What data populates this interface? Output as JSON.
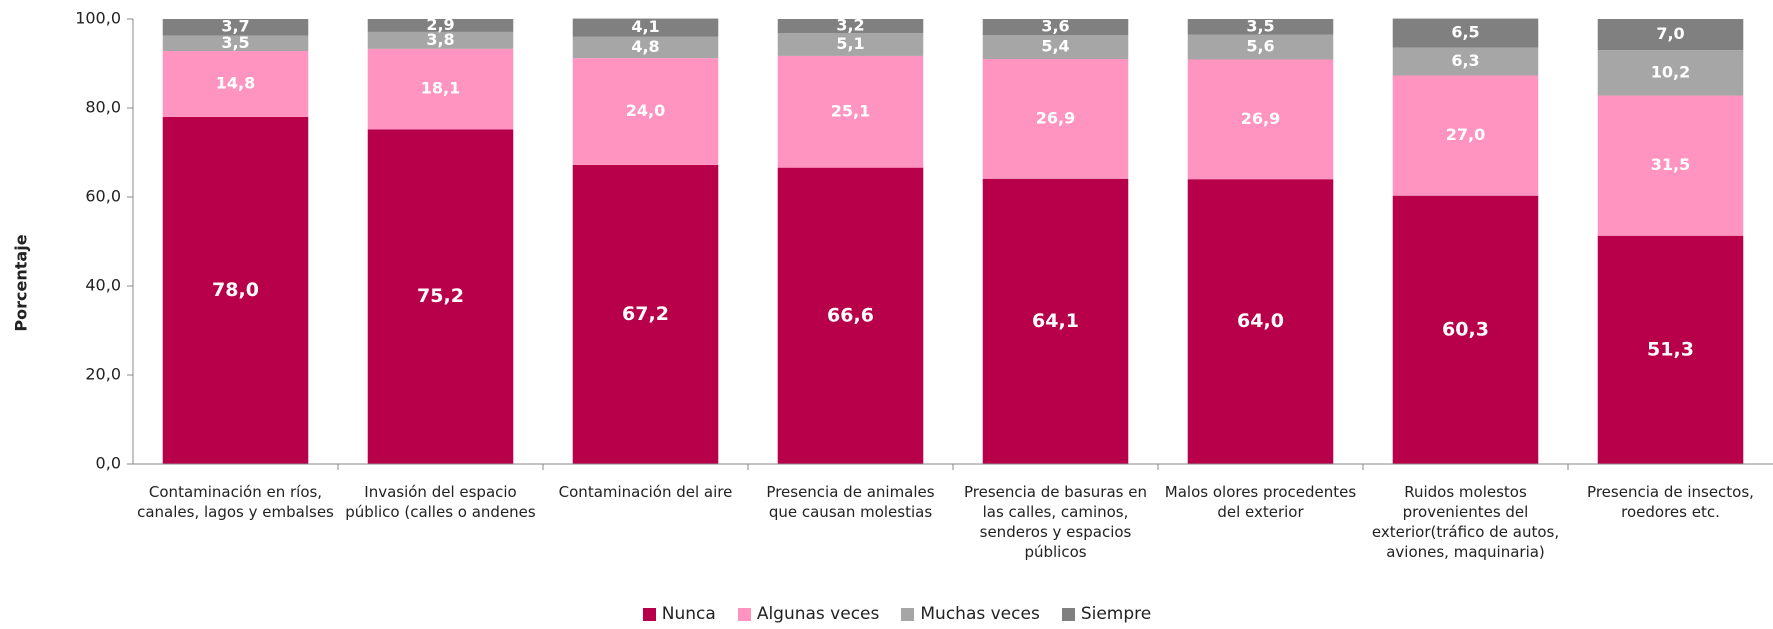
{
  "chart_data": {
    "type": "stacked_bar",
    "y_label": "Porcentaje",
    "categories": [
      "Contaminación en ríos, canales, lagos y embalses",
      "Invasión del espacio público (calles o andenes",
      "Contaminación del aire",
      "Presencia de animales que causan molestias",
      "Presencia de basuras en las calles, caminos, senderos y espacios públicos",
      "Malos olores procedentes del exterior",
      "Ruidos molestos provenientes del exterior(tráfico de autos, aviones, maquinaria)",
      "Presencia de insectos, roedores etc."
    ],
    "series": [
      {
        "name": "Nunca",
        "color": "#b8004a",
        "values": [
          78.0,
          75.2,
          67.2,
          66.6,
          64.1,
          64.0,
          60.3,
          51.3
        ],
        "value_labels": [
          "78,0",
          "75,2",
          "67,2",
          "66,6",
          "64,1",
          "64,0",
          "60,3",
          "51,3"
        ]
      },
      {
        "name": "Algunas veces",
        "color": "#ff94c1",
        "values": [
          14.8,
          18.1,
          24.0,
          25.1,
          26.9,
          26.9,
          27.0,
          31.5
        ],
        "value_labels": [
          "14,8",
          "18,1",
          "24,0",
          "25,1",
          "26,9",
          "26,9",
          "27,0",
          "31,5"
        ]
      },
      {
        "name": "Muchas veces",
        "color": "#a6a6a6",
        "values": [
          3.5,
          3.8,
          4.8,
          5.1,
          5.4,
          5.6,
          6.3,
          10.2
        ],
        "value_labels": [
          "3,5",
          "3,8",
          "4,8",
          "5,1",
          "5,4",
          "5,6",
          "6,3",
          "10,2"
        ]
      },
      {
        "name": "Siempre",
        "color": "#808080",
        "values": [
          3.7,
          2.9,
          4.1,
          3.2,
          3.6,
          3.5,
          6.5,
          7.0
        ],
        "value_labels": [
          "3,7",
          "2,9",
          "4,1",
          "3,2",
          "3,6",
          "3,5",
          "6,5",
          "7,0"
        ]
      }
    ],
    "ylim": [
      0,
      100
    ],
    "yticks": [
      {
        "value": 0,
        "label": "0,0"
      },
      {
        "value": 20,
        "label": "20,0"
      },
      {
        "value": 40,
        "label": "40,0"
      },
      {
        "value": 60,
        "label": "60,0"
      },
      {
        "value": 80,
        "label": "80,0"
      },
      {
        "value": 100,
        "label": "100,0"
      }
    ]
  }
}
